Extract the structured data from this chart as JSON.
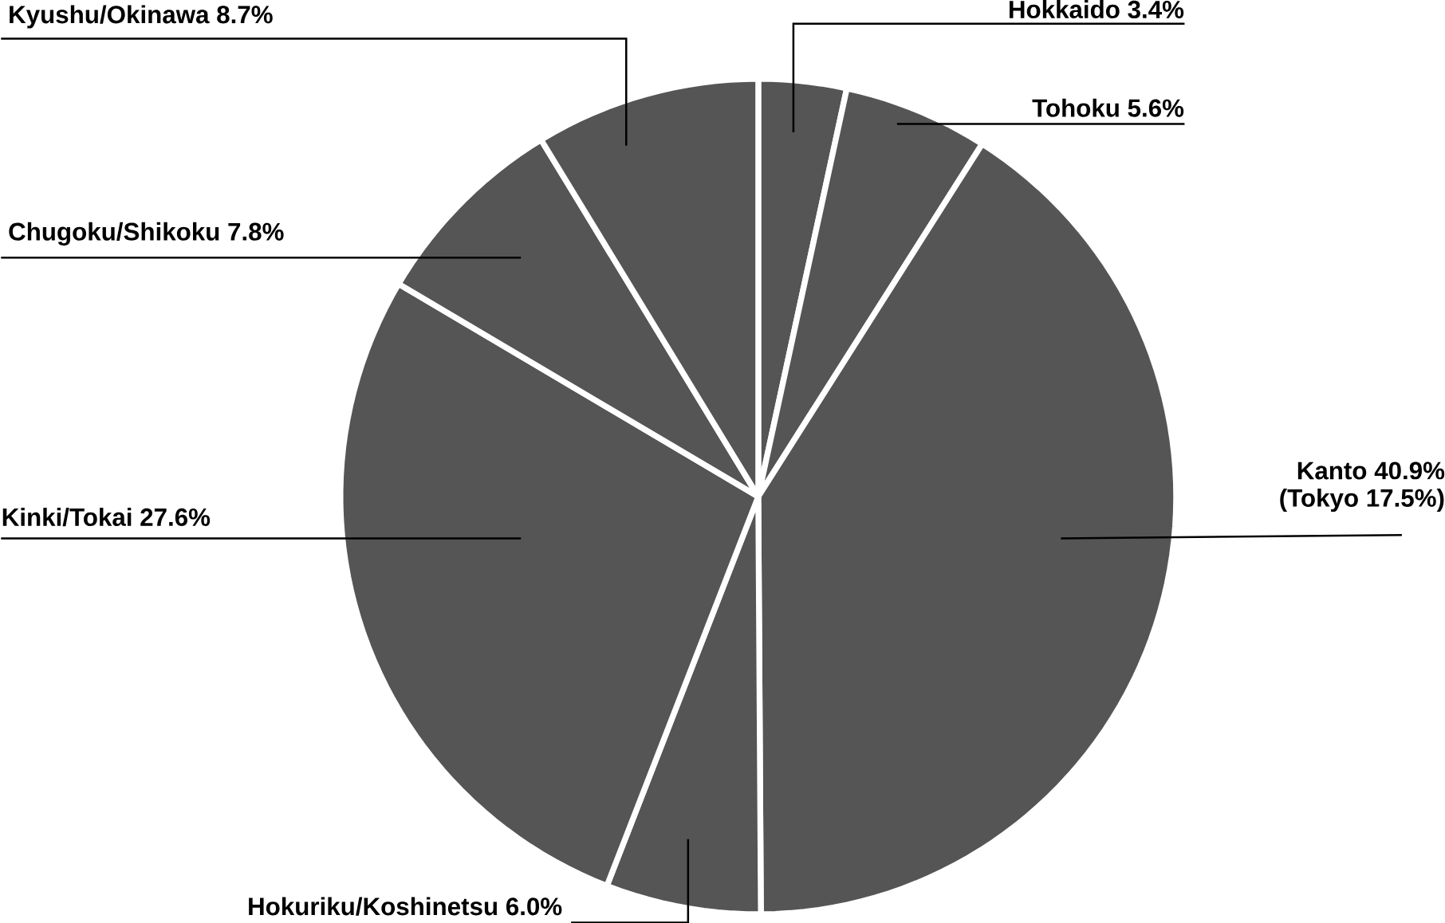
{
  "chart_data": {
    "type": "pie",
    "categories": [
      "Hokkaido",
      "Tohoku",
      "Kanto",
      "Hokuriku/Koshinetsu",
      "Kinki/Tokai",
      "Chugoku/Shikoku",
      "Kyushu/Okinawa"
    ],
    "values": [
      3.4,
      5.6,
      40.9,
      6.0,
      27.6,
      7.8,
      8.7
    ],
    "colors": [
      "#555555",
      "#555555",
      "#555555",
      "#555555",
      "#555555",
      "#555555",
      "#555555"
    ],
    "value_labels": [
      "3.4%",
      "5.6%",
      "40.9%",
      "6.0%",
      "27.6%",
      "7.8%",
      "8.7%"
    ],
    "annotations": [
      "(Tokyo 17.5%)"
    ]
  }
}
